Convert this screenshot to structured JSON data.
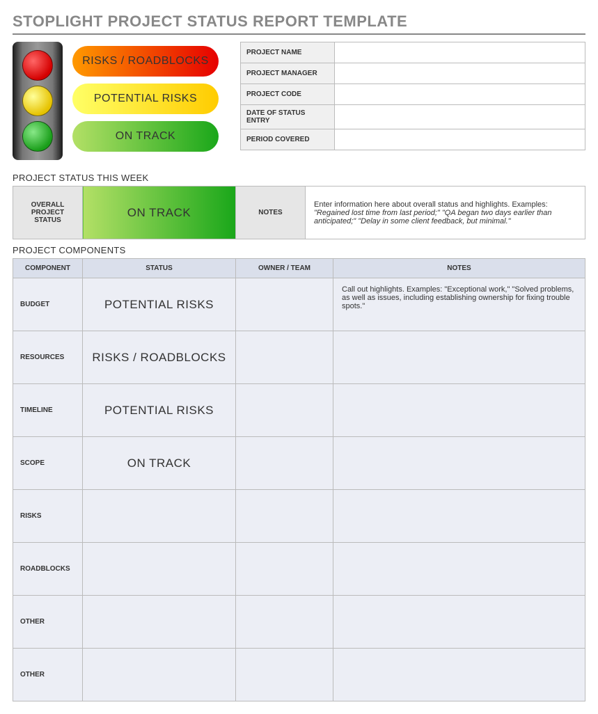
{
  "title": "STOPLIGHT PROJECT STATUS REPORT TEMPLATE",
  "colors": {
    "red_gradient": [
      "#ff9900",
      "#e60000"
    ],
    "yellow_gradient": [
      "#ffff66",
      "#ffcc00"
    ],
    "green_gradient": [
      "#b3e066",
      "#1aa71a"
    ],
    "header_bg": "#dadfeb",
    "row_bg": "#eceef5",
    "info_lbl_bg": "#f0f0f0",
    "border": "#bbbbbb",
    "title_color": "#888888"
  },
  "legend": {
    "red": "RISKS / ROADBLOCKS",
    "yellow": "POTENTIAL RISKS",
    "green": "ON TRACK"
  },
  "info_fields": [
    {
      "label": "PROJECT NAME",
      "value": ""
    },
    {
      "label": "PROJECT MANAGER",
      "value": ""
    },
    {
      "label": "PROJECT CODE",
      "value": ""
    },
    {
      "label": "DATE OF STATUS ENTRY",
      "value": ""
    },
    {
      "label": "PERIOD COVERED",
      "value": ""
    }
  ],
  "status_week": {
    "section_title": "PROJECT STATUS THIS WEEK",
    "overall_label": "OVERALL PROJECT STATUS",
    "overall_status_text": "ON TRACK",
    "overall_status_class": "status-green",
    "notes_label": "NOTES",
    "notes_intro": "Enter information here about overall status and highlights. Examples: ",
    "notes_italic": "\"Regained lost time from last period;\" \"QA began two days earlier than anticipated;\" \"Delay in some client feedback, but minimal.\""
  },
  "components": {
    "section_title": "PROJECT COMPONENTS",
    "headers": [
      "COMPONENT",
      "STATUS",
      "OWNER / TEAM",
      "NOTES"
    ],
    "rows": [
      {
        "label": "BUDGET",
        "status_text": "POTENTIAL RISKS",
        "status_class": "status-yellow",
        "owner": "",
        "notes": "Call out highlights. Examples: \"Exceptional work,\" \"Solved problems, as well as issues, including establishing ownership for fixing trouble spots.\""
      },
      {
        "label": "RESOURCES",
        "status_text": "RISKS / ROADBLOCKS",
        "status_class": "status-red",
        "owner": "",
        "notes": ""
      },
      {
        "label": "TIMELINE",
        "status_text": "POTENTIAL RISKS",
        "status_class": "status-yellow",
        "owner": "",
        "notes": ""
      },
      {
        "label": "SCOPE",
        "status_text": "ON TRACK",
        "status_class": "status-green",
        "owner": "",
        "notes": ""
      },
      {
        "label": "RISKS",
        "status_text": "",
        "status_class": "",
        "owner": "",
        "notes": ""
      },
      {
        "label": "ROADBLOCKS",
        "status_text": "",
        "status_class": "",
        "owner": "",
        "notes": ""
      },
      {
        "label": "OTHER",
        "status_text": "",
        "status_class": "",
        "owner": "",
        "notes": ""
      },
      {
        "label": "OTHER",
        "status_text": "",
        "status_class": "",
        "owner": "",
        "notes": ""
      }
    ]
  }
}
